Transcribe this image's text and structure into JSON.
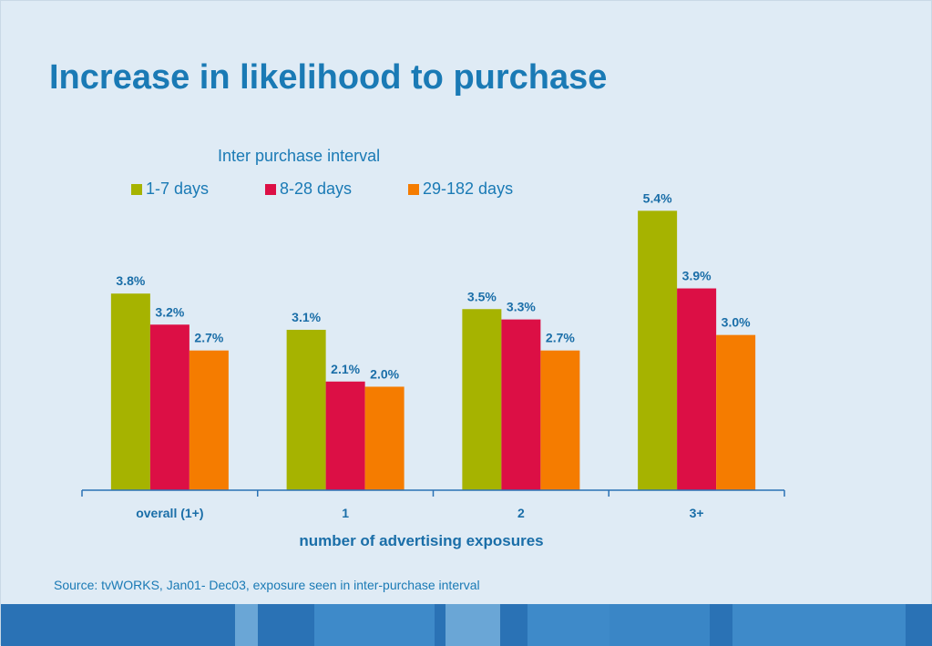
{
  "slide": {
    "title": "Increase in likelihood to purchase",
    "legend_title": "Inter purchase interval",
    "source": "Source: tvWORKS, Jan01- Dec03, exposure seen in inter-purchase interval"
  },
  "chart_data": {
    "type": "bar",
    "title": "",
    "xlabel": "number of advertising exposures",
    "ylabel": "",
    "categories": [
      "overall (1+)",
      "1",
      "2",
      "3+"
    ],
    "series": [
      {
        "name": "1-7 days",
        "color": "#a6b300",
        "values": [
          3.8,
          3.1,
          3.5,
          5.4
        ],
        "labels": [
          "3.8%",
          "3.1%",
          "3.5%",
          "5.4%"
        ]
      },
      {
        "name": "8-28 days",
        "color": "#dc0f45",
        "values": [
          3.2,
          2.1,
          3.3,
          3.9
        ],
        "labels": [
          "3.2%",
          "2.1%",
          "3.3%",
          "3.9%"
        ]
      },
      {
        "name": "29-182 days",
        "color": "#f57c00",
        "values": [
          2.7,
          2.0,
          2.7,
          3.0
        ],
        "labels": [
          "2.7%",
          "2.0%",
          "2.7%",
          "3.0%"
        ]
      }
    ],
    "ylim": [
      0,
      5.6
    ],
    "grid": false,
    "legend_position": "top"
  }
}
